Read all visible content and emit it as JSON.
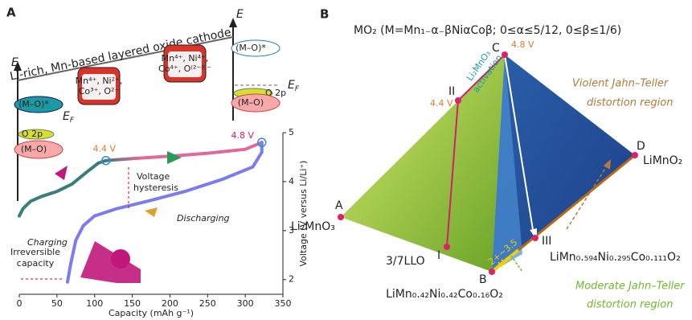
{
  "panel_a": {
    "label": "A",
    "cathode": "Li-rich, Mn-based layered oxide cathode",
    "energy_left": "E",
    "energy_right": "E",
    "fermi_left": "E",
    "fermi_right": "E",
    "fermi_sub": "F",
    "mo_star": "(M–O)*",
    "o2p": "O 2p",
    "mo": "(M–O)",
    "ions_before": [
      "Mn⁴⁺, Ni²⁺,",
      "Co³⁺, O²⁻"
    ],
    "ions_after": [
      "Mn⁴⁺, Ni⁴⁺,",
      "Co⁴⁺, O⁽²⁻ᵟ⁾⁻"
    ]
  },
  "chart_data": {
    "type": "line",
    "xlabel": "Capacity (mAh g⁻¹)",
    "ylabel": "Voltage (V versus Li/Li⁺)",
    "xlim": [
      0,
      350
    ],
    "xticks": [
      0,
      50,
      100,
      150,
      200,
      250,
      300,
      350
    ],
    "ylim": [
      1.7,
      5.0
    ],
    "yticks": [
      2,
      3,
      4,
      5
    ],
    "series": [
      {
        "name": "Charging",
        "color": "#3b7d7a",
        "color_end": "#e2689a",
        "x": [
          0,
          5,
          15,
          30,
          50,
          70,
          90,
          105,
          115,
          150,
          200,
          250,
          300,
          322
        ],
        "values": [
          3.3,
          3.45,
          3.6,
          3.7,
          3.8,
          3.95,
          4.2,
          4.38,
          4.43,
          4.47,
          4.52,
          4.58,
          4.66,
          4.8
        ]
      },
      {
        "name": "Discharging",
        "color": "#7b7cf0",
        "color_end": "#7b7cf0",
        "x": [
          322,
          322,
          310,
          270,
          220,
          170,
          130,
          100,
          85,
          75,
          68,
          64
        ],
        "values": [
          4.8,
          4.6,
          4.3,
          4.05,
          3.8,
          3.6,
          3.45,
          3.3,
          3.1,
          2.8,
          2.3,
          1.95
        ]
      }
    ],
    "annotations": {
      "v44": "4.4 V",
      "v48": "4.8 V",
      "hysteresis": [
        "Voltage",
        "hysteresis"
      ],
      "irreversible": [
        "Irreversible",
        "capacity"
      ]
    }
  },
  "panel_b": {
    "label": "B",
    "title": "MO₂ (M=Mn₁₋α₋βNiαCoβ; 0≤α≤5/12, 0≤β≤1/6)",
    "vertices": {
      "A": "A",
      "A_name": "Li₂MnO₃",
      "B": "B",
      "B_name": "LiMn₀.₄₂Ni₀.₄₂Co₀.₁₆O₂",
      "C": "C",
      "D": "D",
      "D_name": "LiMnO₂"
    },
    "points": {
      "I": "I",
      "I_name": "3/7LLO",
      "II": "II",
      "III": "III",
      "III_name": "LiMn₀.₅₉₄Ni₀.₂₉₅Co₀.₁₁₁O₂"
    },
    "v44": "4.4 V",
    "v48": "4.8 V",
    "activation": [
      "Li₂MnO₃",
      "activation"
    ],
    "mn": "Mn",
    "mn_valence": "2+~3.5",
    "violent": [
      "Violent Jahn–Teller",
      "distortion region"
    ],
    "moderate": [
      "Moderate Jahn–Teller",
      "distortion region"
    ]
  }
}
